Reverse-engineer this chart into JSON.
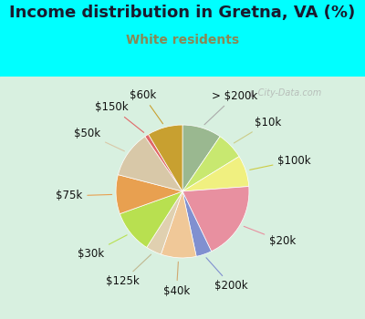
{
  "title": "Income distribution in Gretna, VA (%)",
  "subtitle": "White residents",
  "title_color": "#1a1a2e",
  "subtitle_color": "#888855",
  "background_color": "#00ffff",
  "watermark": "City-Data.com",
  "slices": [
    {
      "label": "> $200k",
      "value": 10,
      "color": "#9ab890",
      "line_color": "#aaaaaa"
    },
    {
      "label": "$10k",
      "value": 7,
      "color": "#c8e870",
      "line_color": "#cccc88"
    },
    {
      "label": "$100k",
      "value": 8,
      "color": "#f0f080",
      "line_color": "#cccc44"
    },
    {
      "label": "$20k",
      "value": 20,
      "color": "#e890a0",
      "line_color": "#e890a0"
    },
    {
      "label": "$200k",
      "value": 4,
      "color": "#8090d0",
      "line_color": "#8090d0"
    },
    {
      "label": "$40k",
      "value": 9,
      "color": "#f0c898",
      "line_color": "#d0a870"
    },
    {
      "label": "$125k",
      "value": 4,
      "color": "#e0d0b0",
      "line_color": "#c0b890"
    },
    {
      "label": "$30k",
      "value": 11,
      "color": "#b8e050",
      "line_color": "#b8e050"
    },
    {
      "label": "$75k",
      "value": 10,
      "color": "#e8a050",
      "line_color": "#e8a050"
    },
    {
      "label": "$50k",
      "value": 12,
      "color": "#d8c8a8",
      "line_color": "#d8c8a8"
    },
    {
      "label": "$150k",
      "value": 1,
      "color": "#e06868",
      "line_color": "#e06868"
    },
    {
      "label": "$60k",
      "value": 9,
      "color": "#c8a030",
      "line_color": "#c8a030"
    }
  ],
  "label_fontsize": 8.5,
  "title_fontsize": 13,
  "subtitle_fontsize": 10
}
